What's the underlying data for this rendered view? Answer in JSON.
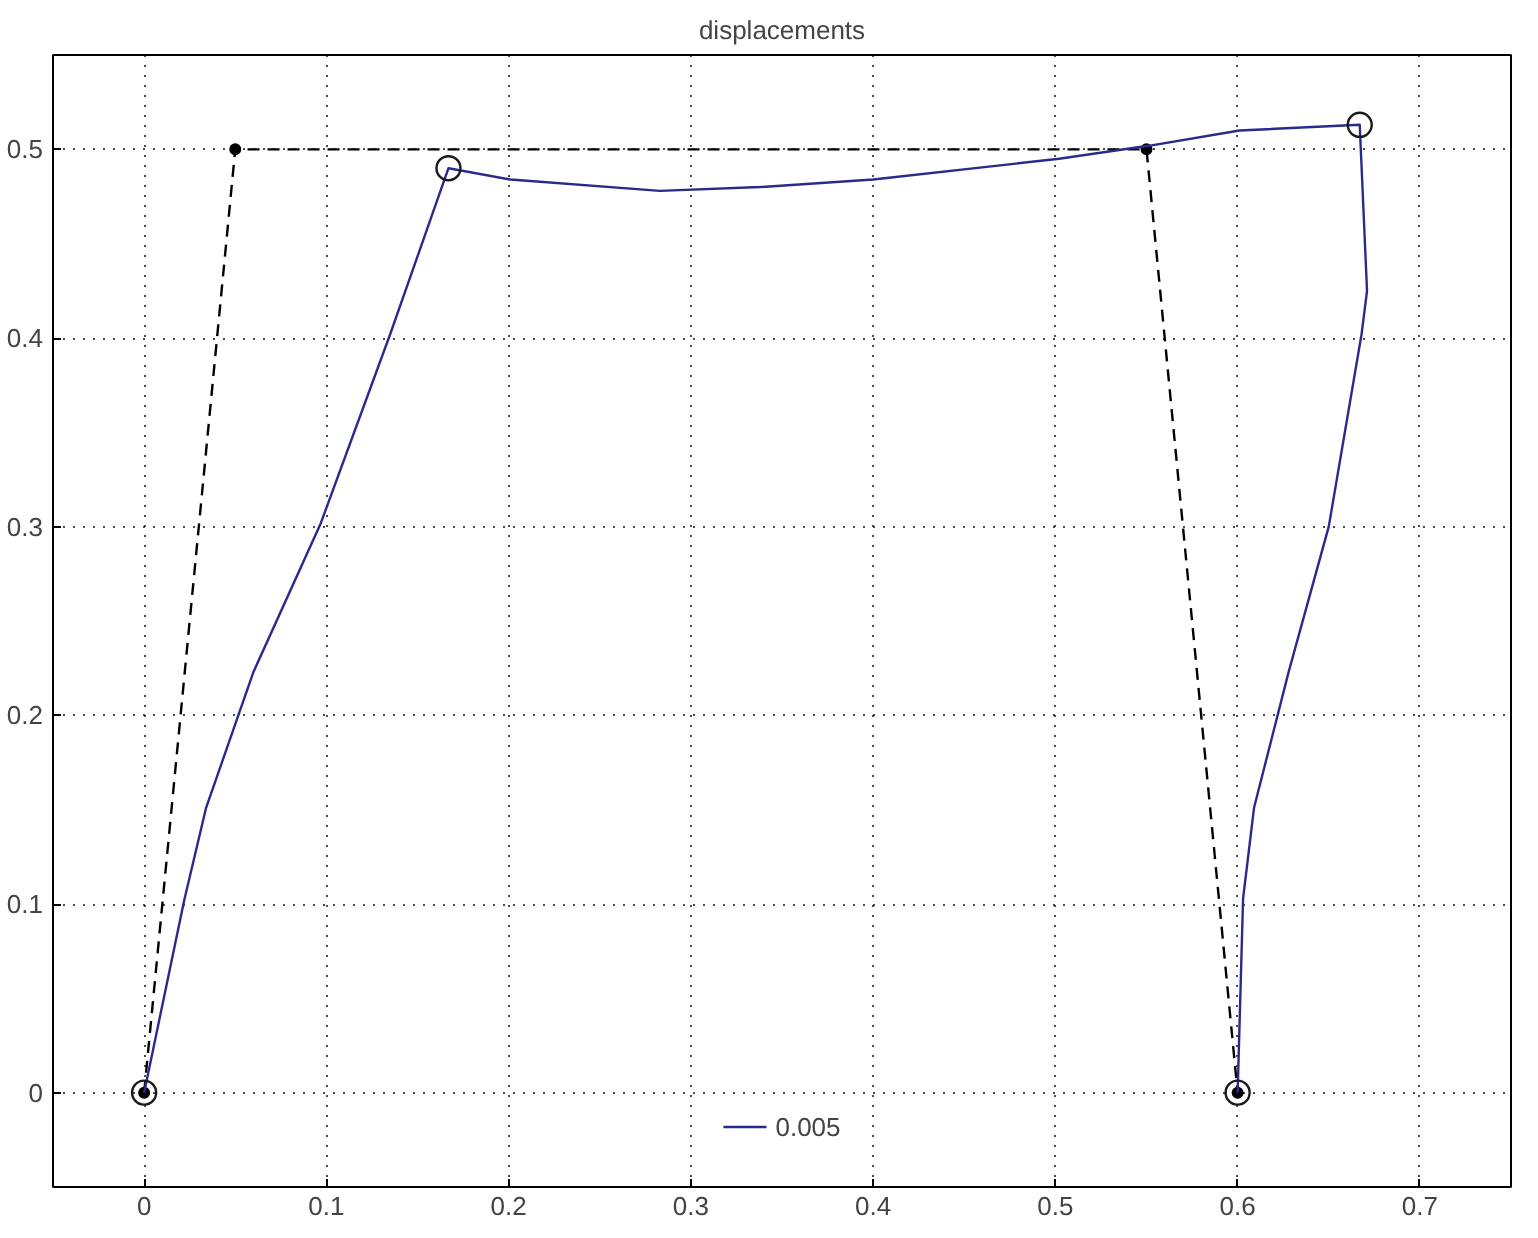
{
  "chart_data": {
    "type": "line",
    "title": "displacements",
    "xlim": [
      -0.05,
      0.75
    ],
    "ylim": [
      -0.05,
      0.55
    ],
    "xticks": [
      0,
      0.1,
      0.2,
      0.3,
      0.4,
      0.5,
      0.6,
      0.7
    ],
    "yticks": [
      0,
      0.1,
      0.2,
      0.3,
      0.4,
      0.5
    ],
    "grid": true,
    "legend": "bottom",
    "series": [
      {
        "color": "#000000",
        "line_style": "dashed",
        "marker": "circle",
        "x": [
          0,
          0.05,
          0.55,
          0.6
        ],
        "values": [
          0,
          0.5,
          0.5,
          0
        ]
      },
      {
        "name": "0.005",
        "color": "#2a2a8c",
        "line_style": "solid",
        "marker": "none",
        "x": [
          0,
          0.022,
          0.034,
          0.06,
          0.097,
          0.135,
          0.167,
          0.201,
          0.283,
          0.338,
          0.4,
          0.502,
          0.552,
          0.601,
          0.667,
          0.671,
          0.668,
          0.65,
          0.628,
          0.609,
          0.603,
          0.6
        ],
        "values": [
          0,
          0.102,
          0.151,
          0.223,
          0.302,
          0.402,
          0.49,
          0.484,
          0.478,
          0.48,
          0.484,
          0.495,
          0.502,
          0.51,
          0.513,
          0.425,
          0.402,
          0.3,
          0.223,
          0.151,
          0.103,
          0
        ]
      },
      {
        "type": "scatter",
        "color": "#1a1a1a",
        "marker": "circle",
        "x": [
          0,
          0.167,
          0.667,
          0.6
        ],
        "values": [
          0,
          0.49,
          0.513,
          0
        ]
      }
    ]
  }
}
